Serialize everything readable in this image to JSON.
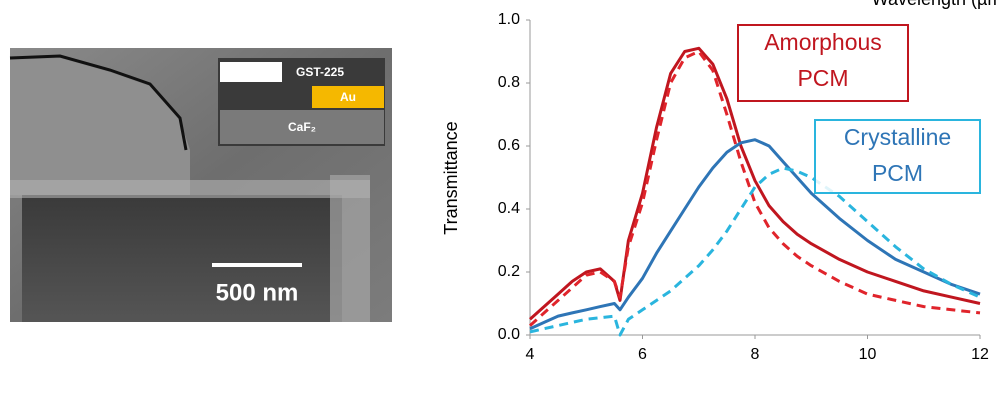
{
  "sem_image": {
    "layers": [
      "GST-225",
      "Au",
      "CaF₂"
    ],
    "scale_bar": "500 nm"
  },
  "chart_data": {
    "type": "line",
    "x_label": "Wavelength (µm)",
    "y_label": "Transmittance",
    "x": [
      4,
      4.25,
      4.5,
      4.75,
      5,
      5.25,
      5.5,
      5.6,
      5.75,
      6,
      6.25,
      6.5,
      6.75,
      7,
      7.25,
      7.5,
      7.75,
      8,
      8.25,
      8.5,
      8.75,
      9,
      9.5,
      10,
      10.5,
      11,
      11.5,
      12
    ],
    "series": [
      {
        "color": "#c0161f",
        "dash": false,
        "values": [
          0.05,
          0.09,
          0.13,
          0.17,
          0.2,
          0.21,
          0.17,
          0.11,
          0.3,
          0.45,
          0.66,
          0.83,
          0.9,
          0.91,
          0.86,
          0.75,
          0.6,
          0.49,
          0.41,
          0.36,
          0.32,
          0.29,
          0.24,
          0.2,
          0.17,
          0.14,
          0.12,
          0.1
        ]
      },
      {
        "color": "#e0242b",
        "dash": true,
        "values": [
          0.03,
          0.07,
          0.11,
          0.15,
          0.19,
          0.2,
          0.17,
          0.12,
          0.28,
          0.42,
          0.62,
          0.8,
          0.88,
          0.9,
          0.84,
          0.7,
          0.55,
          0.42,
          0.34,
          0.29,
          0.25,
          0.22,
          0.17,
          0.13,
          0.11,
          0.09,
          0.08,
          0.07
        ]
      },
      {
        "color": "#2e75b6",
        "dash": false,
        "values": [
          0.02,
          0.04,
          0.06,
          0.07,
          0.08,
          0.09,
          0.1,
          0.08,
          0.12,
          0.18,
          0.26,
          0.33,
          0.4,
          0.47,
          0.53,
          0.58,
          0.61,
          0.62,
          0.6,
          0.55,
          0.5,
          0.45,
          0.37,
          0.3,
          0.24,
          0.2,
          0.16,
          0.13
        ]
      },
      {
        "color": "#2ab5de",
        "dash": true,
        "values": [
          0.01,
          0.02,
          0.03,
          0.04,
          0.05,
          0.055,
          0.06,
          0.0,
          0.05,
          0.08,
          0.11,
          0.14,
          0.18,
          0.22,
          0.27,
          0.33,
          0.4,
          0.47,
          0.51,
          0.53,
          0.52,
          0.5,
          0.44,
          0.36,
          0.28,
          0.21,
          0.16,
          0.12
        ]
      }
    ],
    "annotations": [
      {
        "lines": [
          "Amorphous",
          "PCM"
        ],
        "color": "#c0161f"
      },
      {
        "lines": [
          "Crystalline",
          "PCM"
        ],
        "color": "#2e75b6",
        "border": "#2ab5de"
      }
    ],
    "xlim": [
      4,
      12
    ],
    "xticks": [
      4,
      6,
      8,
      10,
      12
    ],
    "ylim": [
      0,
      1
    ],
    "yticks": [
      {
        "value": 0,
        "label": "0.0"
      },
      0.2,
      0.4,
      0.6,
      0.8,
      {
        "value": 1,
        "label": "1.0"
      }
    ],
    "grid": false
  }
}
